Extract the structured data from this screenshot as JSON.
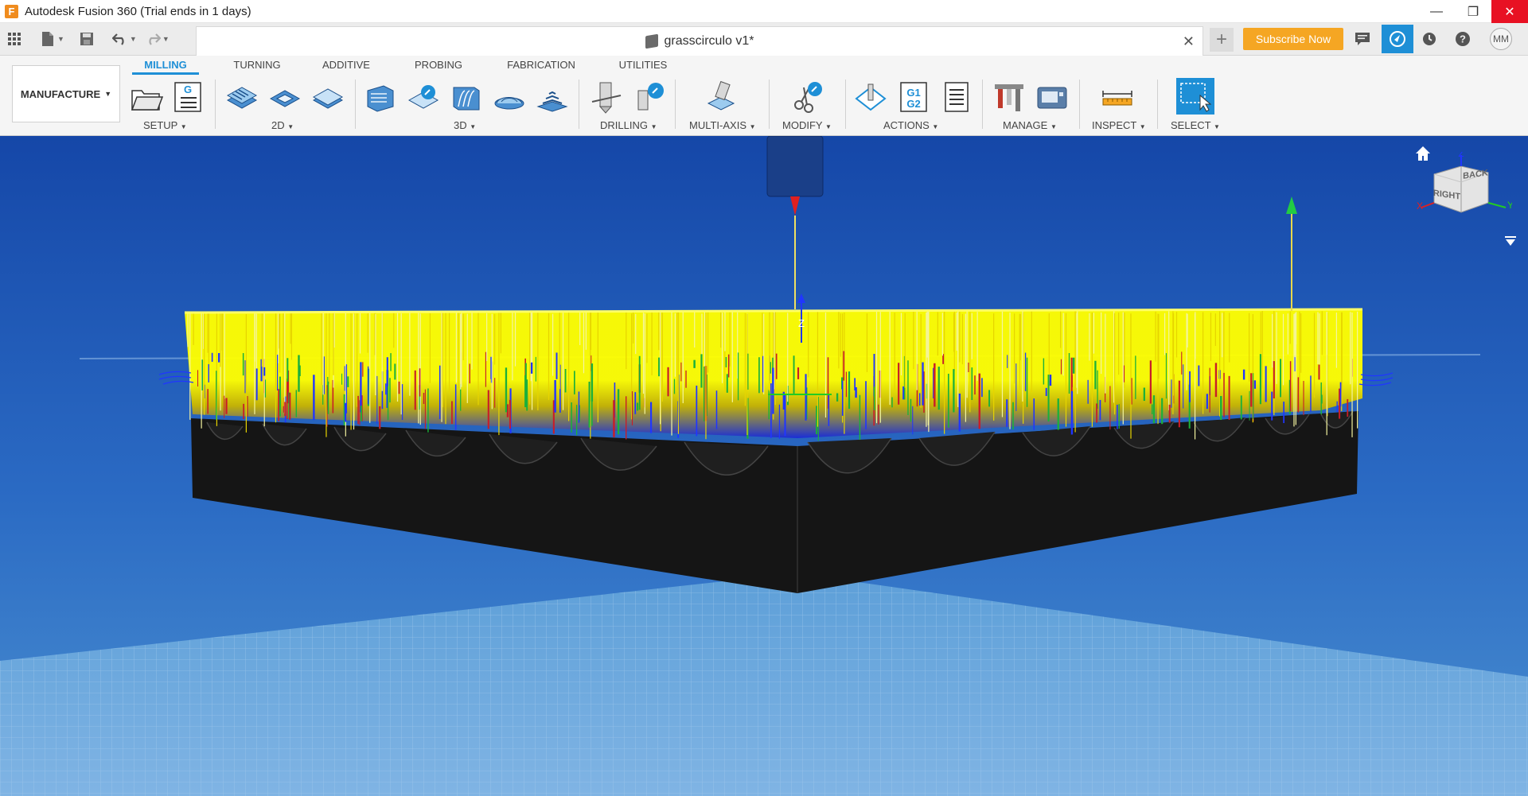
{
  "window": {
    "title": "Autodesk Fusion 360 (Trial ends in 1 days)",
    "logo_letter": "F",
    "minimize": "—",
    "restore": "❐",
    "close": "✕"
  },
  "quick_access": {
    "document_tab": "grasscirculo v1*",
    "tab_close": "✕",
    "new_tab": "+",
    "subscribe_label": "Subscribe Now",
    "user_initials": "MM"
  },
  "ribbon": {
    "workspace": "MANUFACTURE",
    "tabs": [
      "MILLING",
      "TURNING",
      "ADDITIVE",
      "PROBING",
      "FABRICATION",
      "UTILITIES"
    ],
    "active_tab": "MILLING",
    "groups": {
      "setup": "SETUP",
      "two_d": "2D",
      "three_d": "3D",
      "drilling": "DRILLING",
      "multi_axis": "MULTI-AXIS",
      "modify": "MODIFY",
      "actions": "ACTIONS",
      "manage": "MANAGE",
      "inspect": "INSPECT",
      "select": "SELECT"
    },
    "g_label": "G",
    "g1g2_label_1": "G1",
    "g1g2_label_2": "G2"
  },
  "viewport": {
    "axis_z": "Z",
    "viewcube_right": "RIGHT",
    "viewcube_back": "BACK",
    "viewcube_x": "X",
    "viewcube_y": "Y",
    "viewcube_z": "Z"
  },
  "colors": {
    "accent": "#1e8fd6",
    "subscribe": "#f5a623",
    "toolpath": "#ffff00",
    "stock": "#151515",
    "sky_top": "#1547a8",
    "sky_bottom": "#4a8fd0"
  },
  "icons": [
    "apps-grid-icon",
    "file-icon",
    "save-icon",
    "undo-icon",
    "redo-icon",
    "chat-icon",
    "job-status-icon",
    "history-icon",
    "help-icon",
    "home-icon"
  ]
}
